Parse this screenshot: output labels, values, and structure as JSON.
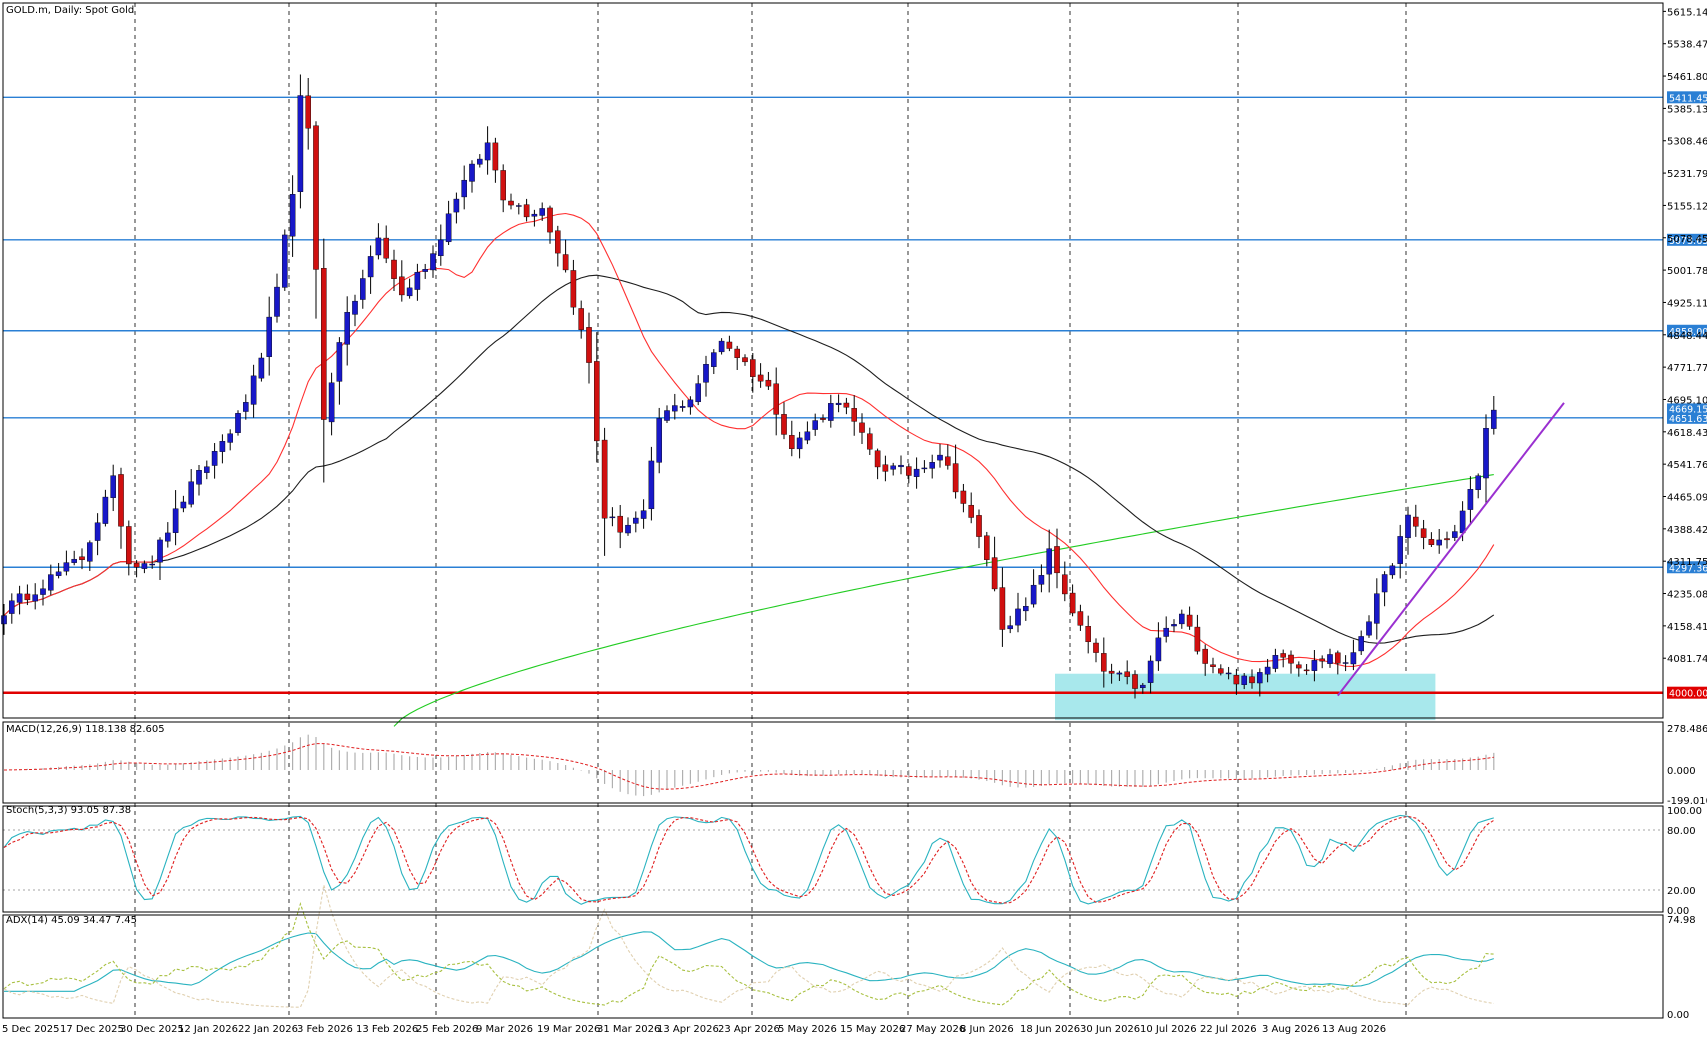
{
  "colors": {
    "bull": "#1818c8",
    "bear": "#d01010",
    "ma_fast": "#ff3030",
    "ma_mid": "#1e1e1e",
    "ma_slow": "#22cc22",
    "level": "#2a7fd4",
    "support": "#e00000",
    "zone": "#a8e8ec",
    "trend": "#9a30d0",
    "stoch_main": "#2ab3c0",
    "stoch_signal": "#e02020",
    "macd_hist": "#b0b0b0",
    "macd_signal": "#e02020",
    "adx": "#2ab3c0",
    "di_plus": "#a8c040",
    "di_minus": "#e0d0b0"
  },
  "chart_data": {
    "type": "candlestick",
    "title": "GOLD.m, Daily:  Spot Gold",
    "price_axis": {
      "range": [
        3940,
        5635
      ],
      "ticks": [
        "5615.14",
        "5538.47",
        "5461.80",
        "5385.13",
        "5308.46",
        "5231.79",
        "5155.12",
        "5078.45",
        "5001.78",
        "4925.11",
        "4848.44",
        "4771.77",
        "4695.10",
        "4618.43",
        "4541.76",
        "4465.09",
        "4388.42",
        "4311.75",
        "4235.08",
        "4158.41",
        "4081.74"
      ]
    },
    "level_labels": [
      {
        "value": 5411.45,
        "label": "5411.45",
        "color": "level"
      },
      {
        "value": 5073.63,
        "label": "5073.63",
        "color": "level"
      },
      {
        "value": 4858.0,
        "label": "4858.00",
        "color": "level"
      },
      {
        "value": 4651.63,
        "label": "4651.63",
        "color": "level"
      },
      {
        "value": 4297.36,
        "label": "4297.36",
        "color": "level"
      },
      {
        "value": 4000.0,
        "label": "4000.00",
        "color": "support"
      }
    ],
    "current_price": {
      "value": 4669.15,
      "label": "4669.15"
    },
    "date_labels": [
      "5 Dec 2025",
      "17 Dec 2025",
      "30 Dec 2025",
      "12 Jan 2026",
      "22 Jan 2026",
      "3 Feb 2026",
      "13 Feb 2026",
      "25 Feb 2026",
      "9 Mar 2026",
      "19 Mar 2026",
      "31 Mar 2026",
      "13 Apr 2026",
      "23 Apr 2026",
      "5 May 2026",
      "15 May 2026",
      "27 May 2026",
      "8 Jun 2026",
      "18 Jun 2026",
      "30 Jun 2026",
      "10 Jul 2026",
      "22 Jul 2026",
      "3 Aug 2026",
      "13 Aug 2026"
    ],
    "close_anchors": [
      [
        0,
        4195
      ],
      [
        5,
        4260
      ],
      [
        10,
        4320
      ],
      [
        14,
        4500
      ],
      [
        16,
        4310
      ],
      [
        19,
        4315
      ],
      [
        23,
        4460
      ],
      [
        30,
        4650
      ],
      [
        33,
        4780
      ],
      [
        37,
        5170
      ],
      [
        38,
        5420
      ],
      [
        39,
        5350
      ],
      [
        41,
        4645
      ],
      [
        43,
        4840
      ],
      [
        48,
        5075
      ],
      [
        51,
        4940
      ],
      [
        55,
        5040
      ],
      [
        58,
        5180
      ],
      [
        62,
        5300
      ],
      [
        64,
        5180
      ],
      [
        67,
        5140
      ],
      [
        69,
        5150
      ],
      [
        72,
        5000
      ],
      [
        75,
        4780
      ],
      [
        77,
        4420
      ],
      [
        79,
        4390
      ],
      [
        82,
        4420
      ],
      [
        84,
        4650
      ],
      [
        88,
        4700
      ],
      [
        92,
        4840
      ],
      [
        96,
        4760
      ],
      [
        98,
        4720
      ],
      [
        101,
        4580
      ],
      [
        105,
        4660
      ],
      [
        107,
        4700
      ],
      [
        112,
        4540
      ],
      [
        116,
        4520
      ],
      [
        120,
        4570
      ],
      [
        123,
        4450
      ],
      [
        126,
        4320
      ],
      [
        128,
        4160
      ],
      [
        131,
        4200
      ],
      [
        134,
        4330
      ],
      [
        138,
        4150
      ],
      [
        141,
        4050
      ],
      [
        146,
        4010
      ],
      [
        148,
        4130
      ],
      [
        151,
        4180
      ],
      [
        154,
        4080
      ],
      [
        157,
        4040
      ],
      [
        160,
        4020
      ],
      [
        163,
        4100
      ],
      [
        167,
        4060
      ],
      [
        170,
        4090
      ],
      [
        172,
        4060
      ],
      [
        176,
        4220
      ],
      [
        180,
        4410
      ],
      [
        183,
        4350
      ],
      [
        186,
        4380
      ],
      [
        189,
        4520
      ],
      [
        190,
        4620
      ],
      [
        191,
        4670
      ]
    ],
    "ma_fast": {
      "period": 20
    },
    "ma_mid": {
      "period": 50
    },
    "ma_slow": {
      "period": 200
    },
    "support_zone": {
      "from_index": 135,
      "to_index": 183,
      "low": 3935,
      "high": 4045
    },
    "trendline": {
      "start": [
        171,
        3993
      ],
      "end": [
        200,
        4687
      ]
    },
    "macd": {
      "label": "MACD(12,26,9) 118.138 82.605",
      "ticks": [
        "278.486",
        "0.000",
        "-199.010"
      ],
      "range": [
        -220,
        320
      ]
    },
    "stoch": {
      "label": "Stoch(5,3,3) 93.05 87.38",
      "ticks": [
        "100.00",
        "80.00",
        "20.00",
        "0.00"
      ],
      "range": [
        -2,
        104
      ],
      "levels": [
        80,
        20
      ]
    },
    "adx": {
      "label": "ADX(14) 45.09 34.47 7.45",
      "ticks": [
        "74.98",
        "0.00"
      ],
      "range": [
        -3,
        78
      ]
    }
  }
}
